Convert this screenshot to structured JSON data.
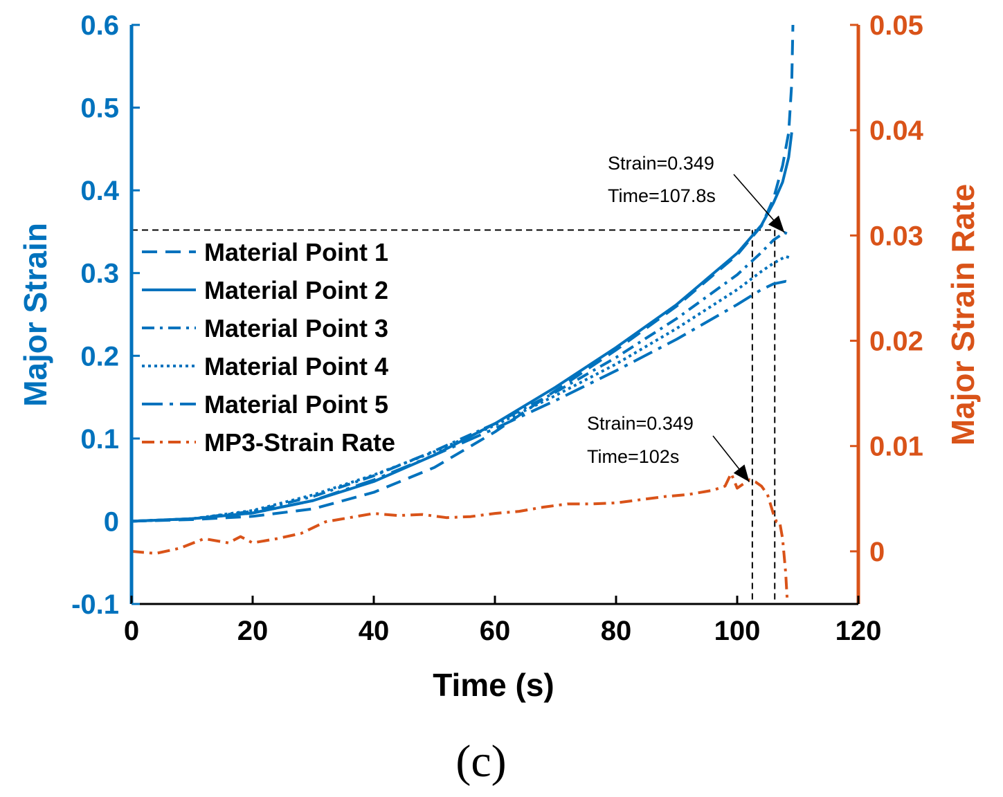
{
  "chart_data": {
    "type": "line",
    "xlabel": "Time (s)",
    "ylabel_left": "Major Strain",
    "ylabel_right": "Major Strain Rate",
    "xlim": [
      0,
      120
    ],
    "ylim_left": [
      -0.1,
      0.6
    ],
    "ylim_right": [
      -0.005,
      0.05
    ],
    "x_ticks": [
      "0",
      "20",
      "40",
      "60",
      "80",
      "100",
      "120"
    ],
    "y_left_ticks": [
      "-0.1",
      "0",
      "0.1",
      "0.2",
      "0.3",
      "0.4",
      "0.5",
      "0.6"
    ],
    "y_right_ticks": [
      "0",
      "0.01",
      "0.02",
      "0.03",
      "0.04",
      "0.05"
    ],
    "grid": false,
    "legend_position": "left",
    "colors": {
      "strain": "#0072BD",
      "rate": "#D95319"
    },
    "series": [
      {
        "name": "Material Point 1",
        "axis": "left",
        "style": "dashed",
        "x": [
          0,
          10,
          20,
          30,
          40,
          50,
          60,
          70,
          80,
          90,
          100,
          104,
          106,
          107.5,
          108.5,
          109,
          109.2
        ],
        "y": [
          0,
          0.002,
          0.006,
          0.015,
          0.035,
          0.065,
          0.108,
          0.158,
          0.207,
          0.26,
          0.322,
          0.357,
          0.39,
          0.43,
          0.47,
          0.53,
          0.6
        ]
      },
      {
        "name": "Material Point 2",
        "axis": "left",
        "style": "solid",
        "x": [
          0,
          10,
          20,
          30,
          40,
          50,
          60,
          70,
          80,
          90,
          100,
          104,
          106,
          107.5,
          108.5,
          109
        ],
        "y": [
          0,
          0.003,
          0.01,
          0.025,
          0.048,
          0.08,
          0.118,
          0.162,
          0.21,
          0.262,
          0.324,
          0.358,
          0.385,
          0.41,
          0.44,
          0.47
        ]
      },
      {
        "name": "Material Point 3",
        "axis": "left",
        "style": "dashdot",
        "x": [
          0,
          10,
          20,
          30,
          40,
          50,
          60,
          70,
          80,
          90,
          100,
          104,
          106,
          107.8,
          109
        ],
        "y": [
          0,
          0.003,
          0.012,
          0.03,
          0.055,
          0.085,
          0.118,
          0.156,
          0.198,
          0.245,
          0.298,
          0.325,
          0.34,
          0.349,
          0.345
        ]
      },
      {
        "name": "Material Point 4",
        "axis": "left",
        "style": "dotted",
        "x": [
          0,
          10,
          20,
          30,
          40,
          50,
          60,
          70,
          80,
          90,
          100,
          104,
          106,
          108,
          109
        ],
        "y": [
          0,
          0.003,
          0.013,
          0.032,
          0.056,
          0.084,
          0.116,
          0.152,
          0.19,
          0.233,
          0.28,
          0.302,
          0.312,
          0.32,
          0.318
        ]
      },
      {
        "name": "Material Point 5",
        "axis": "left",
        "style": "longdashdot",
        "x": [
          0,
          10,
          20,
          30,
          40,
          50,
          60,
          70,
          80,
          90,
          100,
          104,
          106,
          108,
          109
        ],
        "y": [
          0,
          0.003,
          0.01,
          0.025,
          0.05,
          0.08,
          0.112,
          0.146,
          0.182,
          0.22,
          0.262,
          0.28,
          0.287,
          0.29,
          0.288
        ]
      },
      {
        "name": "MP3-Strain Rate",
        "axis": "right",
        "style": "dashdot",
        "x": [
          0,
          4,
          8,
          12,
          16,
          18,
          20,
          24,
          28,
          32,
          36,
          40,
          44,
          48,
          52,
          56,
          60,
          64,
          68,
          72,
          76,
          80,
          84,
          88,
          92,
          96,
          98,
          99,
          100,
          101,
          102,
          103,
          104,
          105,
          106,
          106.5,
          107,
          107.5,
          108,
          108.3
        ],
        "y": [
          0,
          -0.0002,
          0.0003,
          0.0012,
          0.0008,
          0.0014,
          0.0008,
          0.0012,
          0.0017,
          0.0028,
          0.0032,
          0.0036,
          0.0034,
          0.0035,
          0.0032,
          0.0033,
          0.0036,
          0.0038,
          0.0042,
          0.0045,
          0.0045,
          0.0046,
          0.0049,
          0.0052,
          0.0054,
          0.0058,
          0.0062,
          0.0074,
          0.006,
          0.0064,
          0.0068,
          0.0066,
          0.0062,
          0.0054,
          0.0035,
          0.0028,
          0.0028,
          0.0012,
          -0.002,
          -0.005
        ]
      }
    ],
    "annotations": [
      {
        "line1": "Strain=0.349",
        "line2": "Time=107.8s",
        "x": 107.8,
        "y": 0.349,
        "axis": "left"
      },
      {
        "line1": "Strain=0.349",
        "line2": "Time=102s",
        "x": 102,
        "y": 0.0066,
        "axis": "right"
      }
    ],
    "reference_lines": {
      "horizontal_y": 0.352,
      "vertical_x": [
        102.5,
        106.2
      ]
    }
  },
  "caption": "(c)"
}
